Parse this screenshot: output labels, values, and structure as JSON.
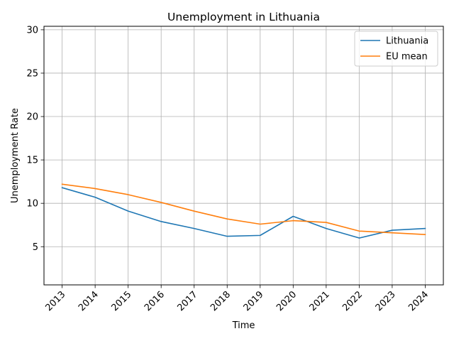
{
  "chart_data": {
    "type": "line",
    "title": "Unemployment in Lithuania",
    "xlabel": "Time",
    "ylabel": "Unemployment Rate",
    "x": [
      2013,
      2014,
      2015,
      2016,
      2017,
      2018,
      2019,
      2020,
      2021,
      2022,
      2023,
      2024
    ],
    "xlim": [
      2012.45,
      2024.55
    ],
    "ylim": [
      0.6,
      30.4
    ],
    "yticks": [
      5,
      10,
      15,
      20,
      25,
      30
    ],
    "grid": true,
    "legend_position": "top-right",
    "series": [
      {
        "name": "Lithuania",
        "color": "#1f77b4",
        "values": [
          11.8,
          10.7,
          9.1,
          7.9,
          7.1,
          6.2,
          6.3,
          8.5,
          7.1,
          6.0,
          6.9,
          7.1
        ]
      },
      {
        "name": "EU mean",
        "color": "#ff7f0e",
        "values": [
          12.2,
          11.7,
          11.0,
          10.1,
          9.1,
          8.2,
          7.6,
          8.0,
          7.8,
          6.8,
          6.6,
          6.4
        ]
      }
    ]
  }
}
